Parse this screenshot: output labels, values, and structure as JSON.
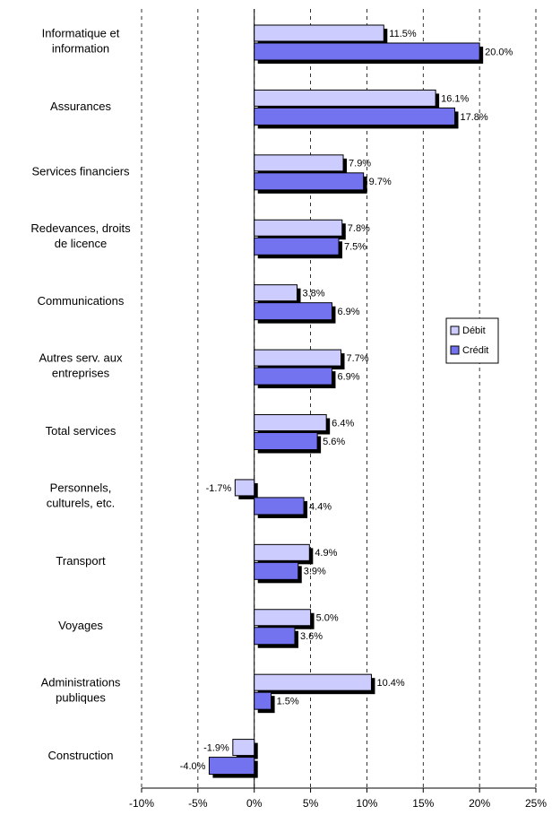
{
  "chart_data": {
    "type": "hbar",
    "categories": [
      "Informatique et\ninformation",
      "Assurances",
      "Services financiers",
      "Redevances, droits\nde licence",
      "Communications",
      "Autres serv. aux\nentreprises",
      "Total services",
      "Personnels,\nculturels, etc.",
      "Transport",
      "Voyages",
      "Administrations\npubliques",
      "Construction"
    ],
    "series": [
      {
        "name": "Débit",
        "color": "#ccccff",
        "values": [
          11.5,
          16.1,
          7.9,
          7.8,
          3.8,
          7.7,
          6.4,
          -1.7,
          4.9,
          5.0,
          10.4,
          -1.9
        ],
        "value_labels": [
          "11.5%",
          "16.1%",
          "7.9%",
          "7.8%",
          "3.8%",
          "7.7%",
          "6.4%",
          "-1.7%",
          "4.9%",
          "5.0%",
          "10.4%",
          "-1.9%"
        ]
      },
      {
        "name": "Crédit",
        "color": "#7373f0",
        "values": [
          20.0,
          17.8,
          9.7,
          7.5,
          6.9,
          6.9,
          5.6,
          4.4,
          3.9,
          3.6,
          1.5,
          -4.0
        ],
        "value_labels": [
          "20.0%",
          "17.8%",
          "9.7%",
          "7.5%",
          "6.9%",
          "6.9%",
          "5.6%",
          "4.4%",
          "3.9%",
          "3.6%",
          "1.5%",
          "-4.0%"
        ]
      }
    ],
    "xlim": [
      -10,
      25
    ],
    "xticks": [
      {
        "value": -10,
        "label": "-10%"
      },
      {
        "value": -5,
        "label": "-5%"
      },
      {
        "value": 0,
        "label": "0%"
      },
      {
        "value": 5,
        "label": "5%"
      },
      {
        "value": 10,
        "label": "10%"
      },
      {
        "value": 15,
        "label": "15%"
      },
      {
        "value": 20,
        "label": "20%"
      },
      {
        "value": 25,
        "label": "25%"
      }
    ],
    "grid": true,
    "legend": "right"
  }
}
